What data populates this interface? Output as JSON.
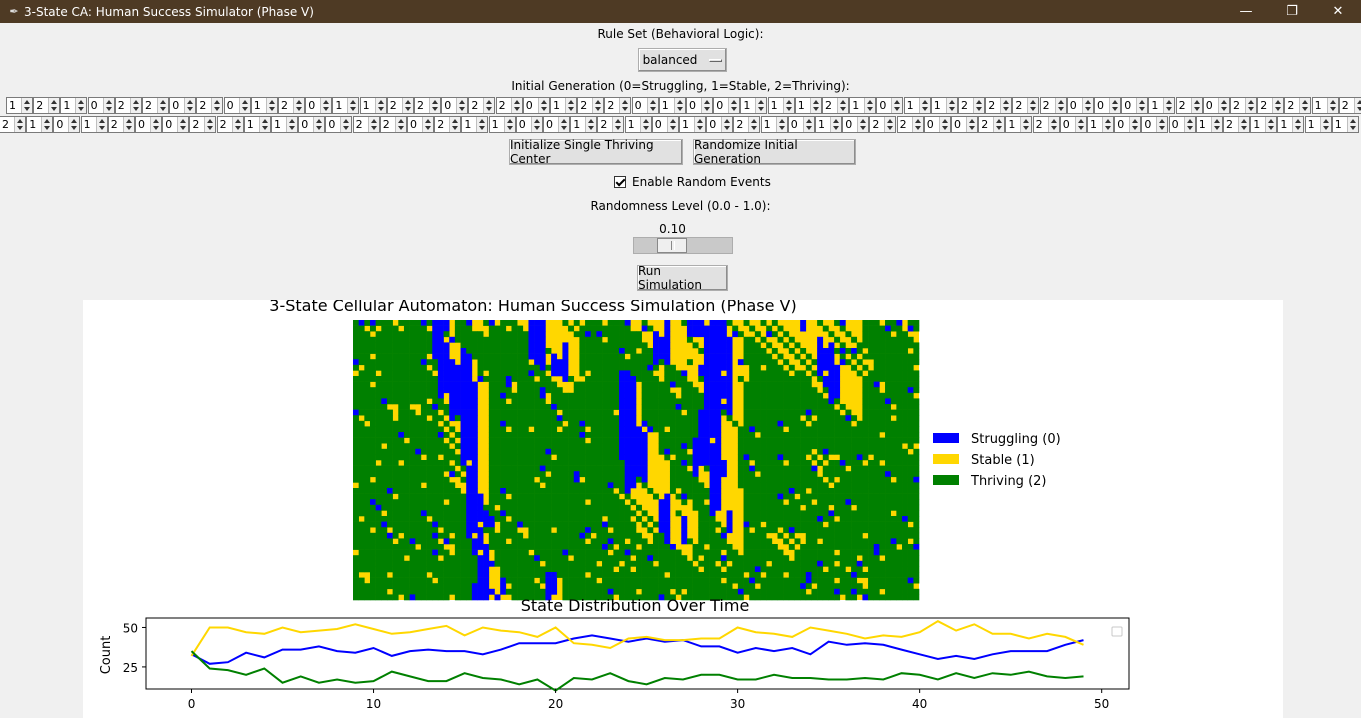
{
  "window": {
    "title": "3-State CA: Human Success Simulator (Phase V)"
  },
  "controls": {
    "rule_set_label": "Rule Set (Behavioral Logic):",
    "rule_set_value": "balanced",
    "initial_generation_label": "Initial Generation (0=Struggling, 1=Stable, 2=Thriving):",
    "row1_values": [
      1,
      2,
      1,
      0,
      2,
      2,
      0,
      2,
      0,
      1,
      2,
      0,
      1,
      1,
      2,
      2,
      0,
      2,
      2,
      0,
      1,
      2,
      2,
      0,
      1,
      0,
      0,
      1,
      1,
      1,
      2,
      1,
      0,
      1,
      1,
      2,
      2,
      2,
      2,
      0,
      0,
      0,
      1,
      2,
      0,
      2,
      2,
      2,
      1,
      2
    ],
    "row2_values": [
      2,
      1,
      0,
      1,
      2,
      0,
      0,
      2,
      2,
      1,
      1,
      0,
      0,
      2,
      2,
      0,
      2,
      1,
      1,
      0,
      0,
      1,
      2,
      1,
      0,
      1,
      0,
      2,
      1,
      0,
      1,
      0,
      2,
      2,
      0,
      0,
      2,
      1,
      2,
      0,
      1,
      0,
      0,
      0,
      1,
      2,
      1,
      1,
      1,
      1
    ],
    "init_center_button": "Initialize Single Thriving Center",
    "randomize_button": "Randomize Initial Generation",
    "random_events_label": "Enable Random Events",
    "random_events_checked": true,
    "randomness_label": "Randomness Level (0.0 - 1.0):",
    "randomness_value_text": "0.10",
    "randomness_value": 0.1,
    "run_button": "Run Simulation"
  },
  "colors": {
    "struggling": "#0000ff",
    "stable": "#ffd700",
    "thriving": "#008000"
  },
  "chart_data": [
    {
      "type": "heatmap",
      "title": "3-State Cellular Automaton: Human Success Simulation (Phase V)",
      "rows": 50,
      "columns": 100,
      "states": [
        0,
        1,
        2
      ],
      "legend": [
        "Struggling (0)",
        "Stable (1)",
        "Thriving (2)"
      ],
      "legend_placement": "right",
      "axes_visible": false
    },
    {
      "type": "line",
      "title": "State Distribution Over Time",
      "xlabel": "",
      "ylabel": "Count",
      "xlim": [
        -2.5,
        51.5
      ],
      "ylim": [
        11,
        56
      ],
      "xticks": [
        0,
        10,
        20,
        30,
        40,
        50
      ],
      "yticks": [
        25,
        50
      ],
      "x": [
        0,
        1,
        2,
        3,
        4,
        5,
        6,
        7,
        8,
        9,
        10,
        11,
        12,
        13,
        14,
        15,
        16,
        17,
        18,
        19,
        20,
        21,
        22,
        23,
        24,
        25,
        26,
        27,
        28,
        29,
        30,
        31,
        32,
        33,
        34,
        35,
        36,
        37,
        38,
        39,
        40,
        41,
        42,
        43,
        44,
        45,
        46,
        47,
        48,
        49
      ],
      "series": [
        {
          "color": "#0000ff",
          "values": [
            33,
            27,
            28,
            34,
            31,
            36,
            36,
            38,
            35,
            34,
            37,
            32,
            35,
            36,
            35,
            35,
            33,
            36,
            40,
            40,
            40,
            43,
            45,
            43,
            41,
            43,
            41,
            42,
            38,
            38,
            34,
            37,
            35,
            37,
            33,
            41,
            39,
            40,
            39,
            36,
            33,
            30,
            32,
            30,
            33,
            35,
            35,
            35,
            39,
            42
          ]
        },
        {
          "color": "#ffd700",
          "values": [
            32,
            50,
            50,
            47,
            46,
            50,
            47,
            48,
            49,
            52,
            49,
            46,
            47,
            49,
            51,
            45,
            50,
            48,
            47,
            44,
            50,
            40,
            39,
            37,
            43,
            44,
            42,
            42,
            43,
            43,
            50,
            47,
            46,
            44,
            50,
            48,
            46,
            43,
            45,
            44,
            47,
            54,
            48,
            52,
            46,
            46,
            43,
            46,
            44,
            39
          ]
        },
        {
          "color": "#008000",
          "values": [
            35,
            24,
            23,
            20,
            24,
            15,
            19,
            15,
            17,
            15,
            16,
            22,
            19,
            16,
            16,
            21,
            18,
            17,
            14,
            17,
            10,
            18,
            17,
            21,
            16,
            14,
            18,
            17,
            20,
            20,
            17,
            17,
            20,
            18,
            18,
            17,
            17,
            18,
            17,
            21,
            20,
            17,
            21,
            18,
            21,
            20,
            22,
            19,
            18,
            19
          ]
        }
      ],
      "legend_placement": "upper right"
    }
  ]
}
